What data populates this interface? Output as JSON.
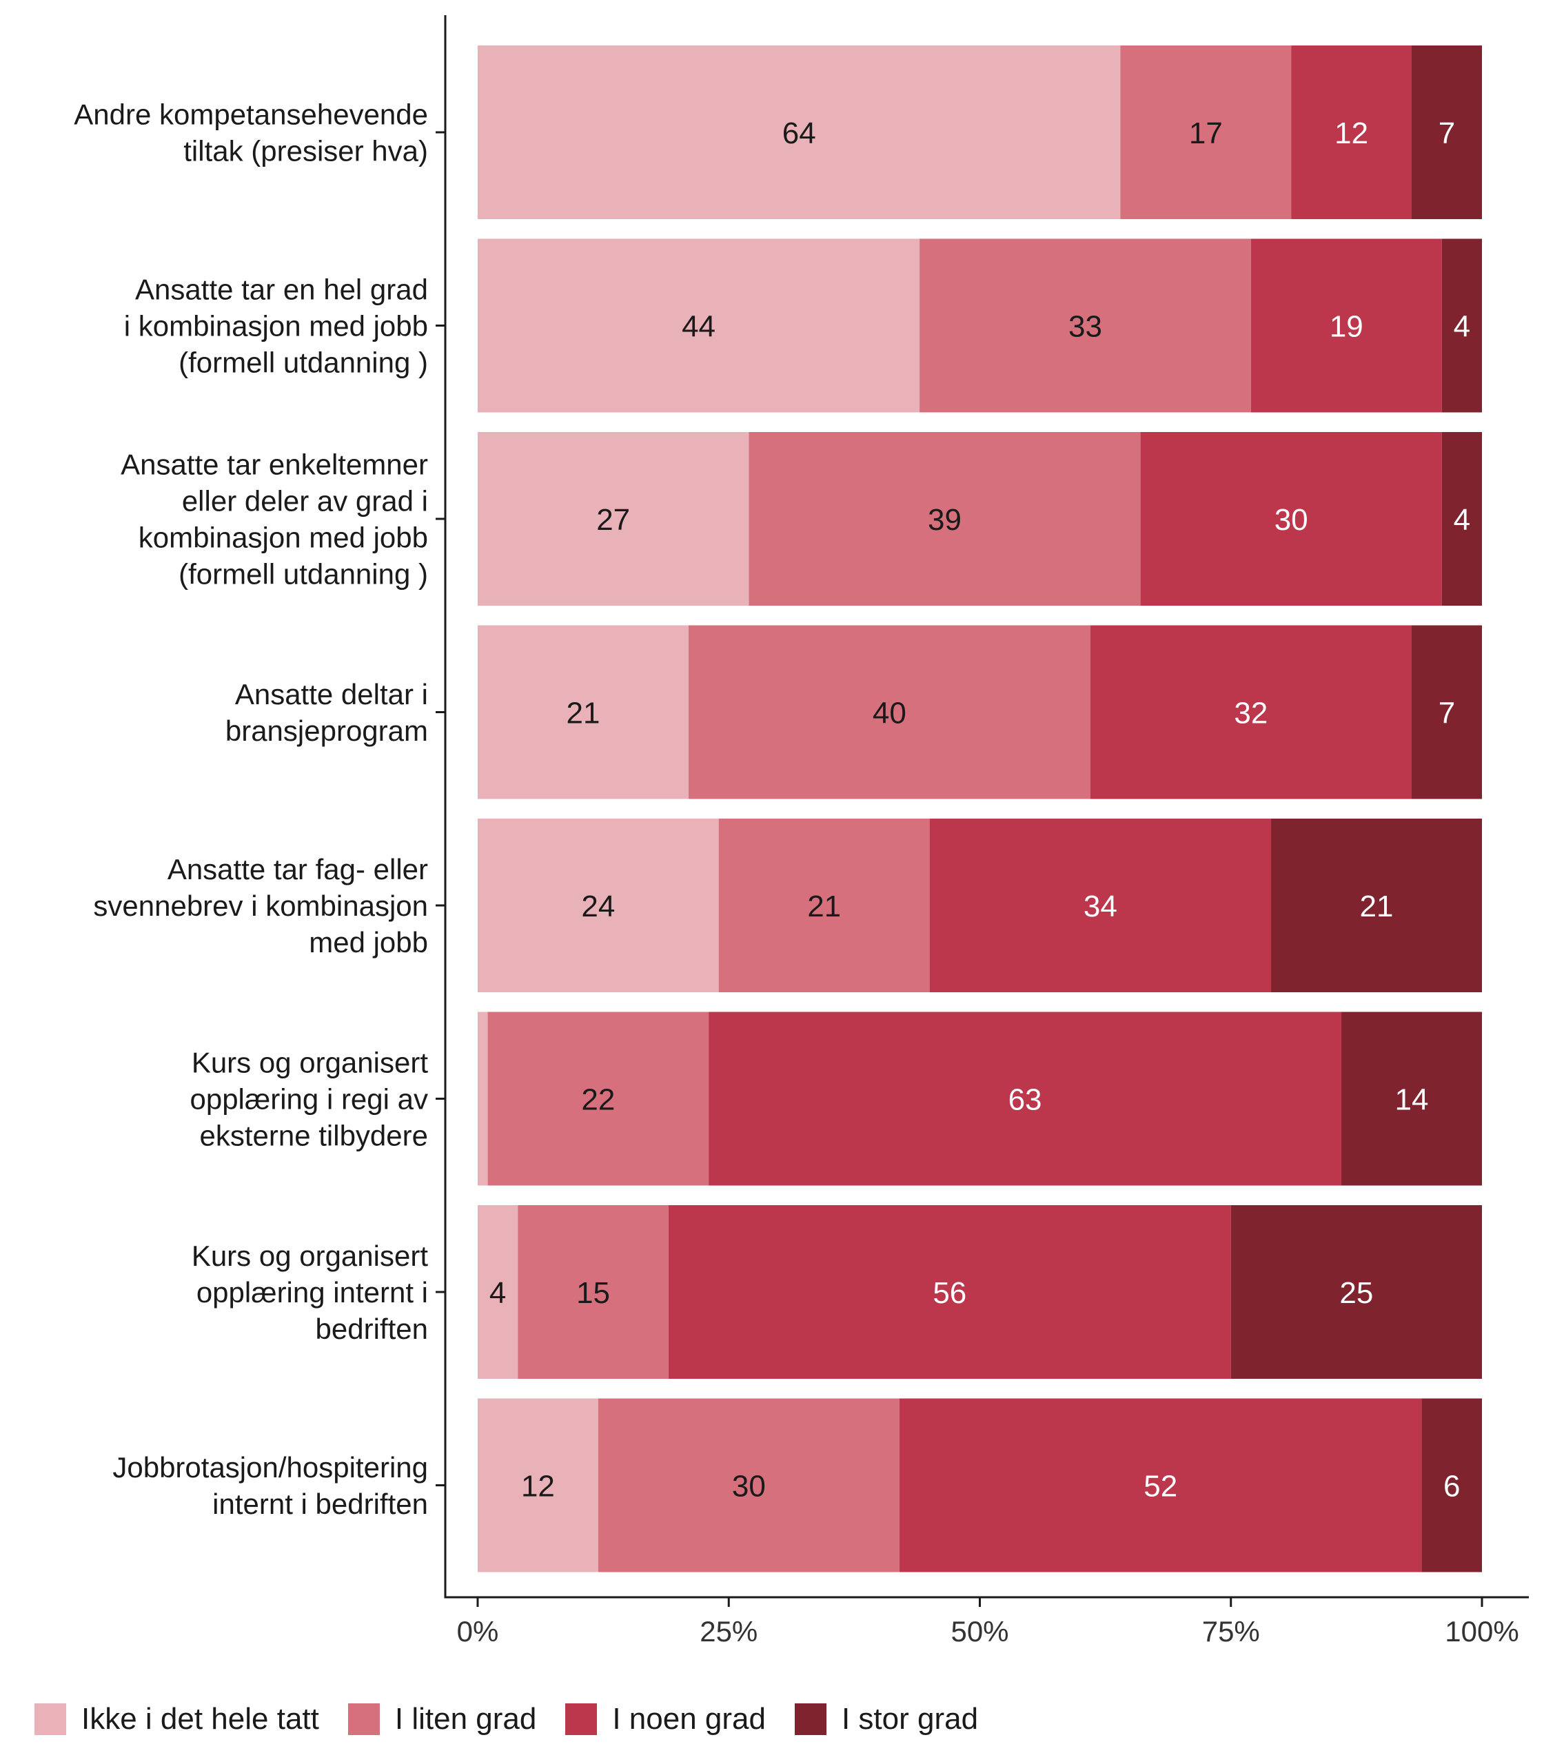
{
  "chart_data": {
    "type": "bar",
    "orientation": "horizontal",
    "stacked": true,
    "percent_scale": true,
    "categories": [
      [
        "Andre kompetansehevende",
        "tiltak (presiser hva)"
      ],
      [
        "Ansatte tar en hel grad",
        "i kombinasjon med jobb",
        "(formell utdanning )"
      ],
      [
        "Ansatte tar enkeltemner",
        "eller deler av grad i",
        "kombinasjon med jobb",
        "(formell utdanning )"
      ],
      [
        "Ansatte deltar i",
        "bransjeprogram"
      ],
      [
        "Ansatte tar fag- eller",
        "svennebrev i kombinasjon",
        "med jobb"
      ],
      [
        "Kurs og organisert",
        "opplæring i regi av",
        "eksterne tilbydere"
      ],
      [
        "Kurs og organisert",
        "opplæring internt i",
        "bedriften"
      ],
      [
        "Jobbrotasjon/hospitering",
        "internt i bedriften"
      ]
    ],
    "series": [
      {
        "name": "Ikke i det hele tatt",
        "color": "#e8b2b8",
        "label_color": "#1a1a1a",
        "values": [
          64,
          44,
          27,
          21,
          24,
          1,
          4,
          12
        ],
        "labels": [
          "64",
          "44",
          "27",
          "21",
          "24",
          "",
          "4",
          "12"
        ]
      },
      {
        "name": "I liten grad",
        "color": "#d6707d",
        "label_color": "#1a1a1a",
        "values": [
          17,
          33,
          39,
          40,
          21,
          22,
          15,
          30
        ],
        "labels": [
          "17",
          "33",
          "39",
          "40",
          "21",
          "22",
          "15",
          "30"
        ]
      },
      {
        "name": "I noen grad",
        "color": "#bc374b",
        "label_color": "#ffffff",
        "values": [
          12,
          19,
          30,
          32,
          34,
          63,
          56,
          52
        ],
        "labels": [
          "12",
          "19",
          "30",
          "32",
          "34",
          "63",
          "56",
          "52"
        ]
      },
      {
        "name": "I stor grad",
        "color": "#7f232f",
        "label_color": "#ffffff",
        "values": [
          7,
          4,
          4,
          7,
          21,
          14,
          25,
          6
        ],
        "labels": [
          "7",
          "4",
          "4",
          "7",
          "21",
          "14",
          "25",
          "6"
        ]
      }
    ],
    "xlim": [
      0,
      100
    ],
    "xticks": [
      0,
      25,
      50,
      75,
      100
    ],
    "xtick_labels": [
      "0%",
      "25%",
      "50%",
      "75%",
      "100%"
    ],
    "xlabel": "",
    "ylabel": "",
    "title": "",
    "grid": false,
    "legend_position": "bottom-left"
  }
}
